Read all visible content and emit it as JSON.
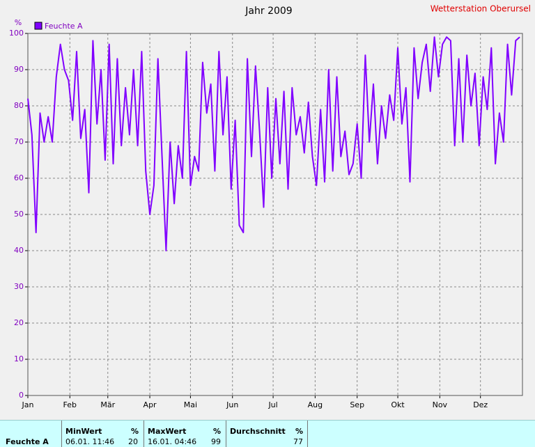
{
  "chart_data": {
    "type": "line",
    "title": "Jahr 2009",
    "station": "Wetterstation Oberursel",
    "y_unit": "%",
    "x": [
      0,
      3,
      6,
      9,
      12,
      15,
      18,
      21,
      24,
      27,
      30,
      33,
      36,
      39,
      42,
      45,
      48,
      51,
      54,
      57,
      60,
      63,
      66,
      69,
      72,
      75,
      78,
      81,
      84,
      87,
      90,
      93,
      96,
      99,
      102,
      105,
      108,
      111,
      114,
      117,
      120,
      123,
      126,
      129,
      132,
      135,
      138,
      141,
      144,
      147,
      150,
      153,
      156,
      159,
      162,
      165,
      168,
      171,
      174,
      177,
      180,
      183,
      186,
      189,
      192,
      195,
      198,
      201,
      204,
      207,
      210,
      213,
      216,
      219,
      222,
      225,
      228,
      231,
      234,
      237,
      240,
      243,
      246,
      249,
      252,
      255,
      258,
      261,
      264,
      267,
      270,
      273,
      276,
      279,
      282,
      285,
      288,
      291,
      294,
      297,
      300,
      303,
      306,
      309,
      312,
      315,
      318,
      321,
      324,
      327,
      330,
      333,
      336,
      339,
      342,
      345,
      348,
      351,
      354,
      357,
      360,
      363
    ],
    "xlim": [
      0,
      365
    ],
    "xticks": [
      {
        "value": 0,
        "label": "Jan"
      },
      {
        "value": 31,
        "label": "Feb"
      },
      {
        "value": 59,
        "label": "Mär"
      },
      {
        "value": 90,
        "label": "Apr"
      },
      {
        "value": 120,
        "label": "Mai"
      },
      {
        "value": 151,
        "label": "Jun"
      },
      {
        "value": 181,
        "label": "Jul"
      },
      {
        "value": 212,
        "label": "Aug"
      },
      {
        "value": 243,
        "label": "Sep"
      },
      {
        "value": 273,
        "label": "Okt"
      },
      {
        "value": 304,
        "label": "Nov"
      },
      {
        "value": 334,
        "label": "Dez"
      }
    ],
    "ylim": [
      0,
      100
    ],
    "yticks": [
      0,
      10,
      20,
      30,
      40,
      50,
      60,
      70,
      80,
      90,
      100
    ],
    "grid": true,
    "series": [
      {
        "name": "Feuchte A",
        "color": "#8000ff",
        "values": [
          82,
          72,
          45,
          78,
          70,
          77,
          70,
          88,
          97,
          90,
          87,
          76,
          95,
          71,
          79,
          56,
          98,
          75,
          90,
          65,
          97,
          64,
          93,
          69,
          85,
          72,
          90,
          69,
          95,
          62,
          50,
          58,
          93,
          66,
          40,
          70,
          53,
          69,
          60,
          95,
          58,
          66,
          62,
          92,
          78,
          86,
          62,
          95,
          72,
          88,
          57,
          76,
          47,
          45,
          93,
          66,
          91,
          73,
          52,
          85,
          60,
          82,
          64,
          84,
          57,
          85,
          72,
          77,
          67,
          81,
          66,
          58,
          79,
          59,
          90,
          62,
          88,
          66,
          73,
          61,
          64,
          75,
          60,
          94,
          70,
          86,
          64,
          80,
          71,
          83,
          76,
          96,
          75,
          85,
          59,
          96,
          82,
          92,
          97,
          84,
          99,
          88,
          97,
          99,
          98,
          69,
          93,
          70,
          94,
          80,
          89,
          69,
          88,
          79,
          96,
          64,
          78,
          70,
          97,
          83,
          98,
          99
        ]
      }
    ]
  },
  "table": {
    "row_label": "Feuchte A",
    "columns": [
      {
        "header": "MinWert",
        "unit": "%",
        "time": "06.01.  11:46",
        "value": 20
      },
      {
        "header": "MaxWert",
        "unit": "%",
        "time": "16.01.  04:46",
        "value": 99
      },
      {
        "header": "Durchschnitt",
        "unit": "%",
        "value": 77
      }
    ]
  }
}
